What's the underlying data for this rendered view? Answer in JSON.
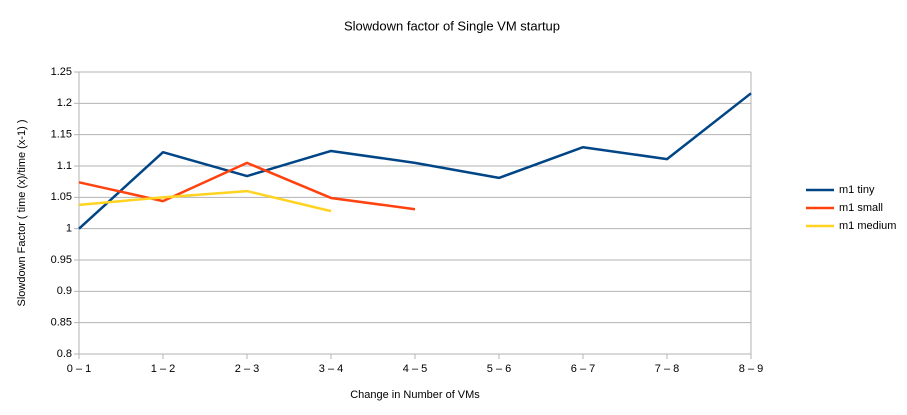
{
  "chart_data": {
    "type": "line",
    "title": "Slowdown factor of Single VM startup",
    "x_label": "Change in Number of VMs",
    "y_label": "Slowdown Factor ( time (x)/time (x-1) )",
    "categories": [
      "0 – 1",
      "1 – 2",
      "2 – 3",
      "3 – 4",
      "4 – 5",
      "5 – 6",
      "6 – 7",
      "7 – 8",
      "8 – 9"
    ],
    "series": [
      {
        "name": "m1 tiny",
        "color": "#004586",
        "values": [
          1.0,
          1.122,
          1.084,
          1.124,
          1.105,
          1.081,
          1.13,
          1.111,
          1.216
        ]
      },
      {
        "name": "m1 small",
        "color": "#ff420e",
        "values": [
          1.074,
          1.044,
          1.105,
          1.049,
          1.031,
          null,
          null,
          null,
          null
        ]
      },
      {
        "name": "m1 medium",
        "color": "#ffd320",
        "values": [
          1.038,
          1.05,
          1.06,
          1.028,
          null,
          null,
          null,
          null,
          null
        ]
      }
    ],
    "ylim": [
      0.8,
      1.25
    ],
    "yticks": [
      0.8,
      0.85,
      0.9,
      0.95,
      1,
      1.05,
      1.1,
      1.15,
      1.2,
      1.25
    ],
    "grid": true,
    "legend": "right"
  }
}
